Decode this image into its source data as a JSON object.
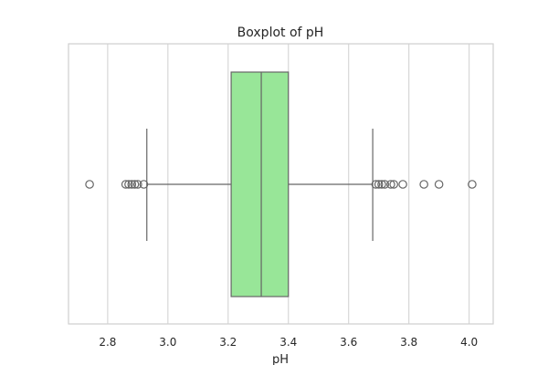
{
  "chart_data": {
    "type": "box",
    "title": "Boxplot of pH",
    "xlabel": "pH",
    "ylabel": "",
    "xlim": [
      2.67,
      4.08
    ],
    "xticks": [
      2.8,
      3.0,
      3.2,
      3.4,
      3.6,
      3.8,
      4.0
    ],
    "xtick_labels": [
      "2.8",
      "3.0",
      "3.2",
      "3.4",
      "3.6",
      "3.8",
      "4.0"
    ],
    "grid": "vertical",
    "box": {
      "whisker_low": 2.93,
      "q1": 3.21,
      "median": 3.31,
      "q3": 3.4,
      "whisker_high": 3.68
    },
    "outliers": [
      2.74,
      2.86,
      2.87,
      2.88,
      2.89,
      2.9,
      2.92,
      3.69,
      3.7,
      3.71,
      3.72,
      3.74,
      3.75,
      3.78,
      3.85,
      3.9,
      4.01
    ],
    "colors": {
      "box_fill": "#98e698",
      "lines": "#666666",
      "grid": "#d7d7d7"
    }
  }
}
